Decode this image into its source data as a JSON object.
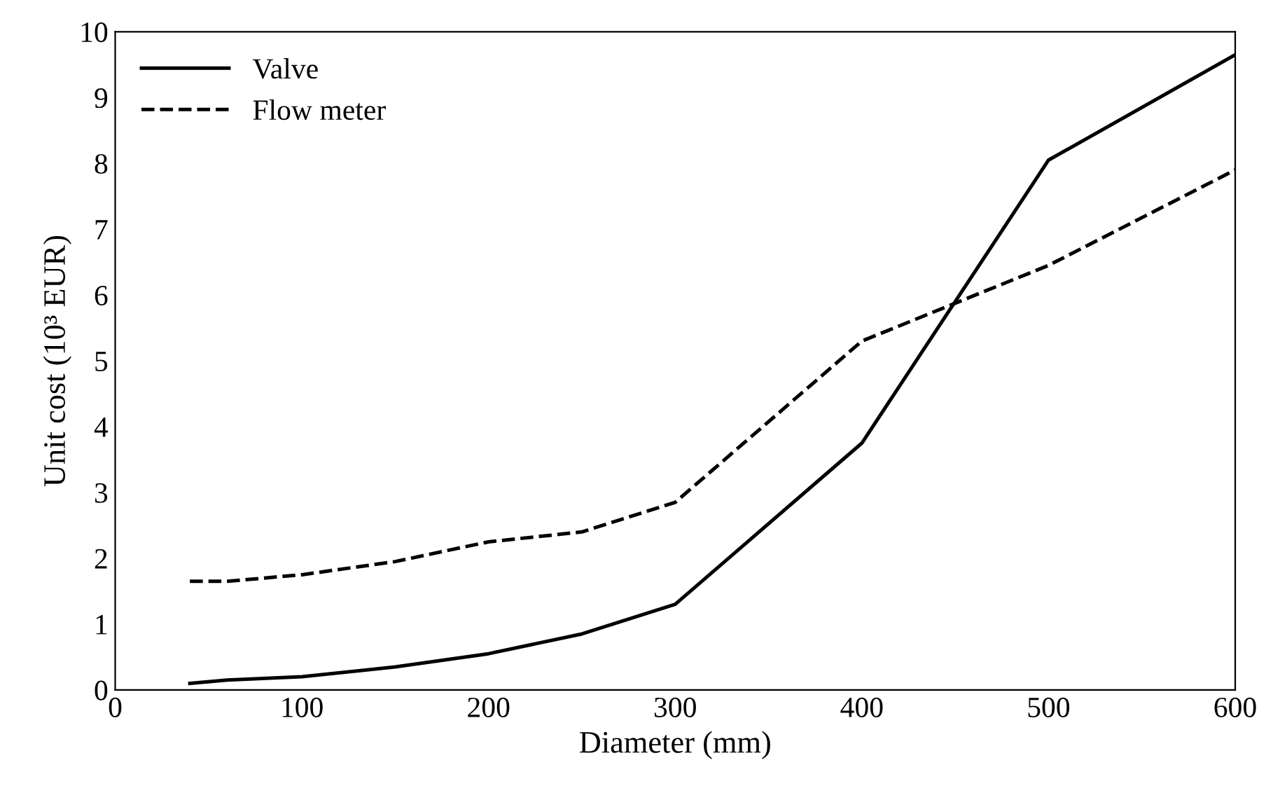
{
  "chart_data": {
    "type": "line",
    "xlabel": "Diameter (mm)",
    "ylabel": "Unit cost (10³ EUR)",
    "series": [
      {
        "name": "Valve",
        "color": "#000000",
        "line_style": "solid",
        "x": [
          40,
          60,
          100,
          150,
          200,
          250,
          300,
          400,
          500,
          600
        ],
        "values": [
          0.1,
          0.15,
          0.2,
          0.35,
          0.55,
          0.85,
          1.3,
          3.75,
          8.05,
          9.65
        ]
      },
      {
        "name": "Flow meter",
        "color": "#000000",
        "line_style": "dashed",
        "x": [
          40,
          60,
          100,
          150,
          200,
          250,
          300,
          400,
          500,
          600
        ],
        "values": [
          1.65,
          1.65,
          1.75,
          1.95,
          2.25,
          2.4,
          2.85,
          5.3,
          6.45,
          7.9
        ]
      }
    ],
    "xlim": [
      0,
      600
    ],
    "ylim": [
      0,
      10
    ],
    "xticks": [
      0,
      100,
      200,
      300,
      400,
      500,
      600
    ],
    "yticks": [
      0,
      1,
      2,
      3,
      4,
      5,
      6,
      7,
      8,
      9,
      10
    ],
    "grid": false,
    "legend": "top left",
    "marker": "none"
  }
}
